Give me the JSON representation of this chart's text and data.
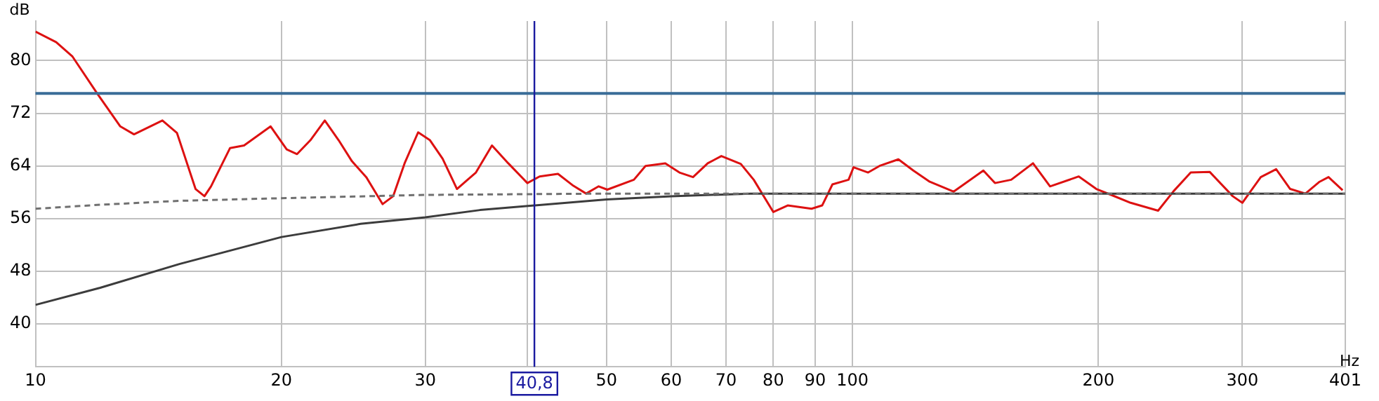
{
  "chart_data": {
    "type": "line",
    "xlabel": "Hz",
    "ylabel": "dB",
    "log": "x",
    "grid": true,
    "legend": false,
    "marker": "none",
    "xlim": [
      10,
      401
    ],
    "ylim": [
      33.5,
      86
    ],
    "xticks": [
      10,
      20,
      30,
      {
        "value": 40,
        "label": null
      },
      50,
      60,
      70,
      80,
      90,
      100,
      200,
      300,
      401
    ],
    "yticks": [
      40,
      48,
      56,
      64,
      72,
      80
    ],
    "series": [
      {
        "color": "#707070",
        "line_style": "dashed",
        "x": [
          10,
          12,
          15,
          20,
          30,
          50,
          75,
          100,
          401
        ],
        "values": [
          57.5,
          58.1,
          58.7,
          59.1,
          59.6,
          59.8,
          59.8,
          59.8,
          59.8
        ]
      },
      {
        "color": "#3c3c3c",
        "line_style": "solid",
        "x": [
          10,
          12,
          15,
          20,
          25,
          30,
          35,
          40.8,
          50,
          60,
          75,
          100,
          401
        ],
        "values": [
          42.9,
          45.5,
          49.1,
          53.2,
          55.2,
          56.2,
          57.3,
          58,
          58.9,
          59.4,
          59.8,
          59.8,
          59.8
        ]
      },
      {
        "color": "#dd1111",
        "line_style": "solid",
        "x": [
          10,
          10.6,
          11.1,
          11.9,
          12.7,
          13.2,
          14.3,
          14.9,
          15.7,
          16.1,
          16.4,
          17.3,
          18,
          19.4,
          20.3,
          20.9,
          21.7,
          22.6,
          23.5,
          24.4,
          25.4,
          26.6,
          27.4,
          28.3,
          29.4,
          30.4,
          31.5,
          32.8,
          34.6,
          36.2,
          37.9,
          40,
          41.4,
          43.6,
          45.4,
          47.2,
          48.9,
          50.1,
          54,
          55.8,
          59,
          61.4,
          63.8,
          66.5,
          69.1,
          73,
          75.7,
          80,
          83.3,
          89.1,
          91.8,
          94.5,
          98.9,
          100.3,
          104.5,
          107.9,
          113.8,
          118.7,
          124.3,
          133,
          144.6,
          149.4,
          156.4,
          166.3,
          174.5,
          189.2,
          198.8,
          207.3,
          219,
          236.6,
          247.3,
          259.4,
          273.6,
          292,
          300,
          316,
          330,
          343.3,
          358.4,
          373,
          382.5,
          398
        ],
        "values": [
          84.4,
          82.8,
          80.6,
          75,
          70,
          68.8,
          70.9,
          69,
          60.5,
          59.4,
          60.9,
          66.7,
          67.1,
          70,
          66.5,
          65.8,
          67.9,
          70.9,
          67.9,
          64.7,
          62.3,
          58.2,
          59.4,
          64.4,
          69.1,
          67.9,
          65.1,
          60.5,
          63,
          67.1,
          64.4,
          61.4,
          62.4,
          62.8,
          61.1,
          59.8,
          60.9,
          60.4,
          61.9,
          64,
          64.4,
          63,
          62.3,
          64.4,
          65.5,
          64.3,
          61.9,
          57,
          58,
          57.5,
          58,
          61.2,
          61.9,
          63.8,
          63,
          64,
          65,
          63.3,
          61.6,
          60.1,
          63.3,
          61.4,
          61.9,
          64.4,
          60.9,
          62.4,
          60.5,
          59.6,
          58.4,
          57.2,
          60.2,
          63,
          63.1,
          59.4,
          58.4,
          62.3,
          63.5,
          60.5,
          59.8,
          61.6,
          62.3,
          60.3
        ]
      }
    ],
    "ref_lines": [
      {
        "axis": "y",
        "value": 75,
        "color": "#3a6d98"
      },
      {
        "axis": "x",
        "value": 40.8,
        "label": "40,8",
        "color": "#1a1aa0"
      }
    ]
  }
}
